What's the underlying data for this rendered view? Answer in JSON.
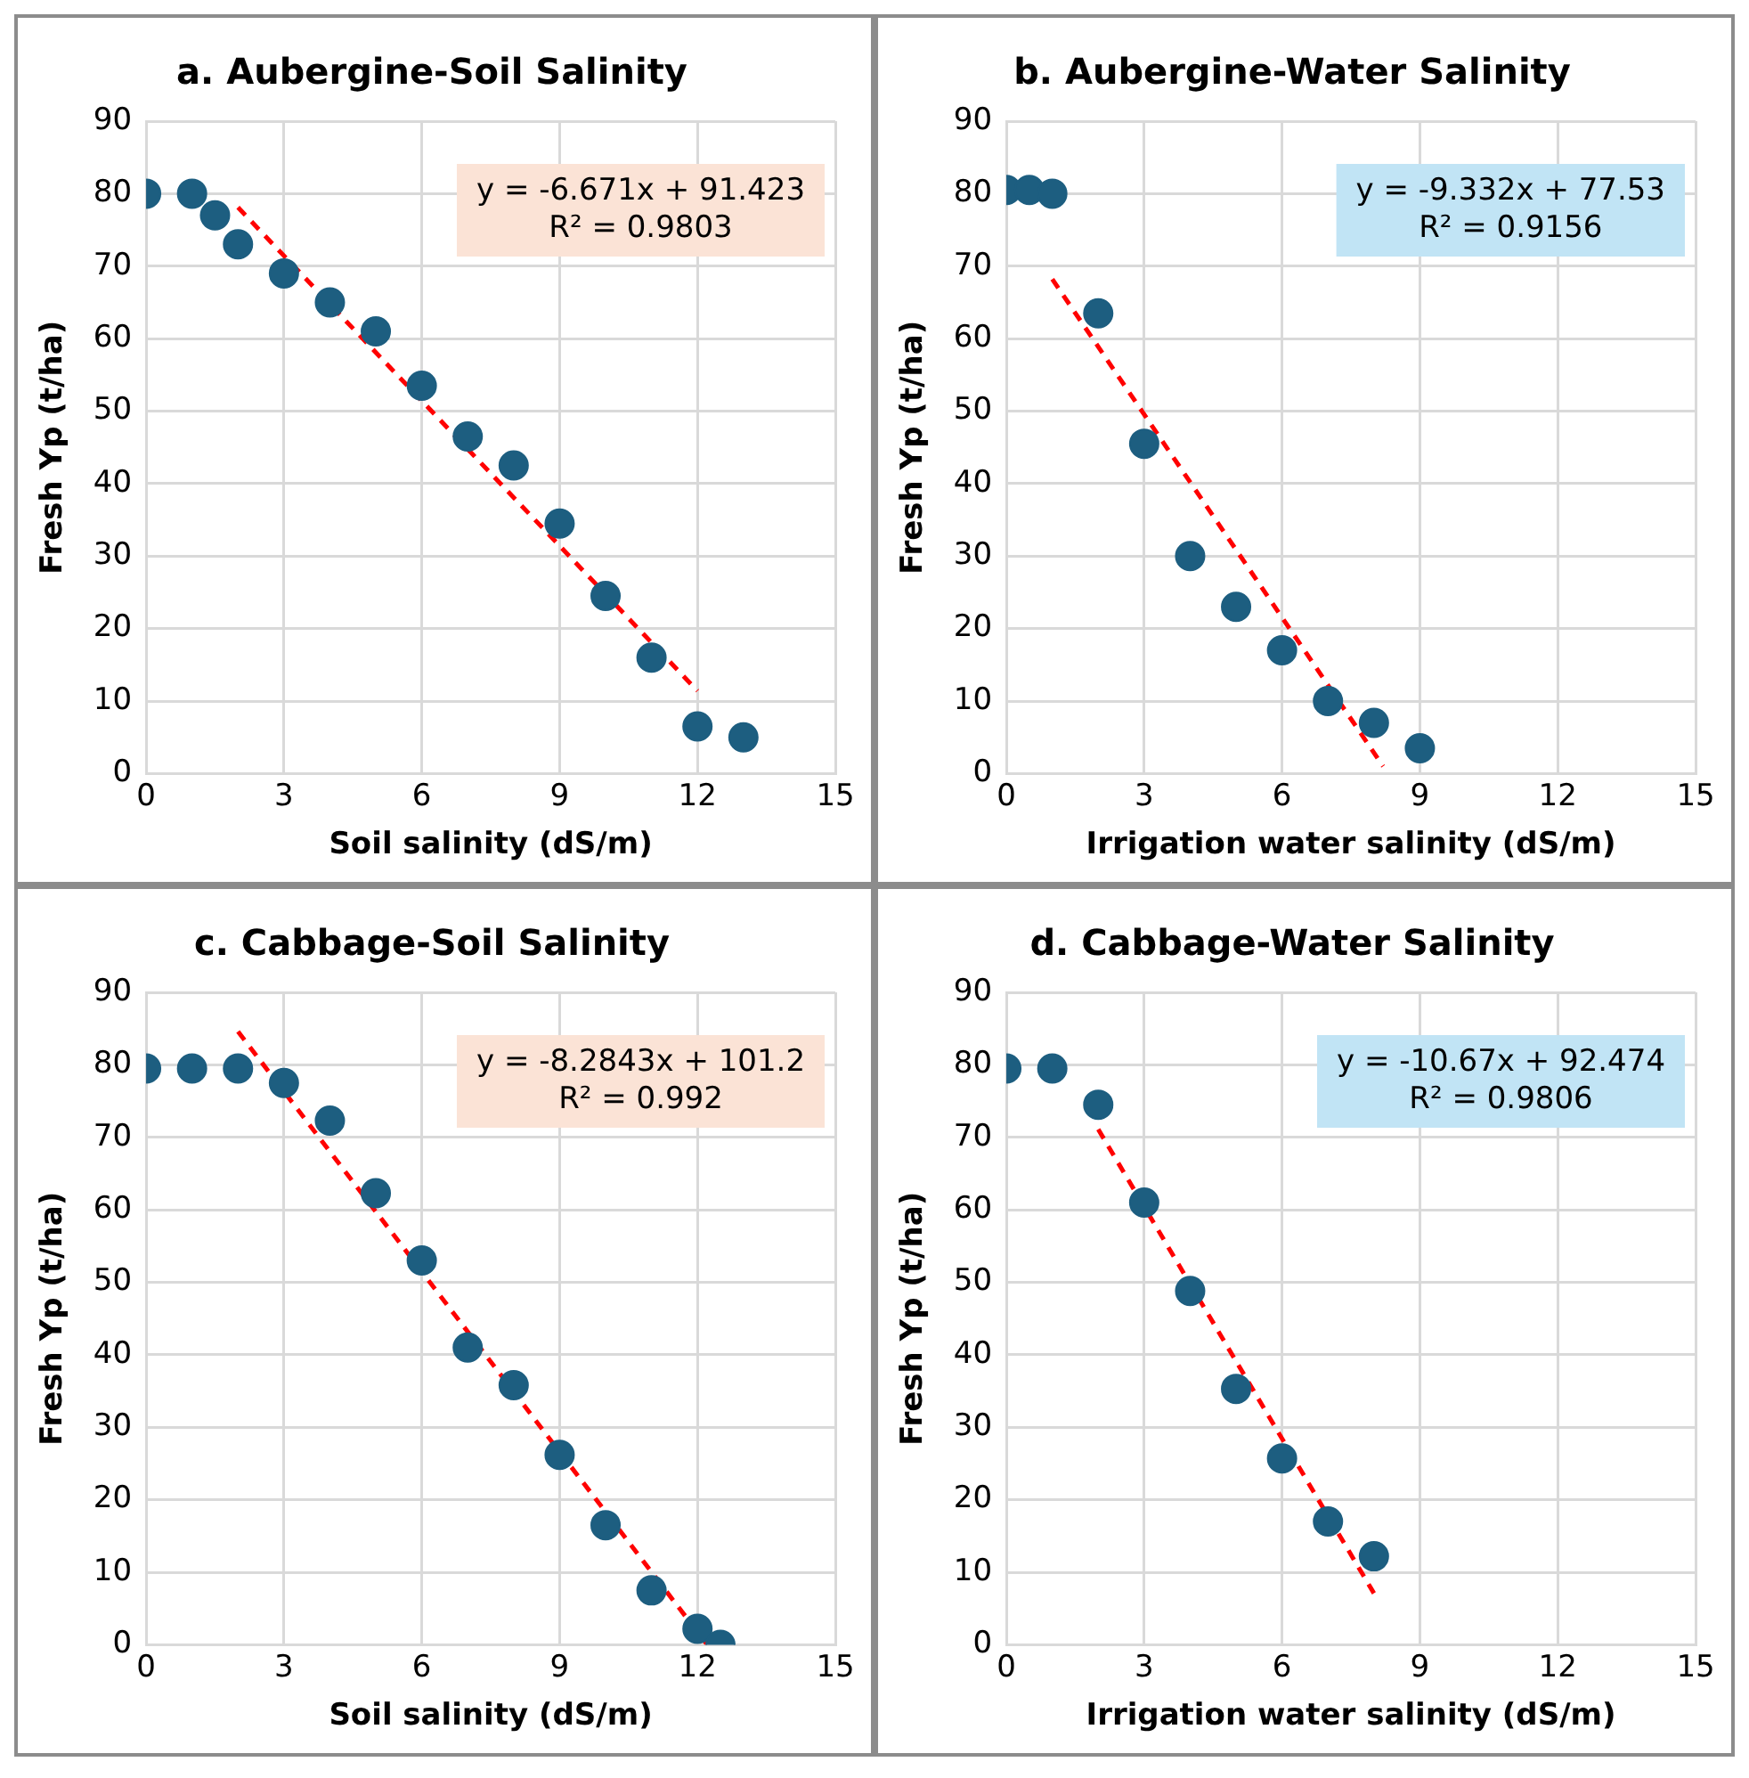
{
  "chart_data": [
    {
      "type": "scatter",
      "title": "a. Aubergine-Soil Salinity",
      "xlabel": "Soil salinity (dS/m)",
      "ylabel": "Fresh Yp (t/ha)",
      "xlim": [
        0,
        15
      ],
      "ylim": [
        0,
        90
      ],
      "xticks": [
        0,
        3,
        6,
        9,
        12,
        15
      ],
      "yticks": [
        0,
        10,
        20,
        30,
        40,
        50,
        60,
        70,
        80,
        90
      ],
      "grid": true,
      "series": [
        {
          "type": "scatter",
          "marker": "circle",
          "color": "#1d5e80",
          "x": [
            0,
            1,
            1.5,
            2,
            3,
            4,
            5,
            6,
            7,
            8,
            9,
            10,
            11,
            12,
            13
          ],
          "values": [
            80,
            80,
            77,
            73,
            69,
            65,
            61,
            53.5,
            46.5,
            42.5,
            34.5,
            24.5,
            16,
            6.5,
            5
          ]
        },
        {
          "type": "line",
          "marker": "none",
          "line_style": "dashed",
          "color": "#ff0000",
          "x": [
            2,
            12
          ],
          "values": [
            78.1,
            11.4
          ]
        }
      ],
      "annotations": [
        "y = -6.671x + 91.423\nR² = 0.9803"
      ]
    },
    {
      "type": "scatter",
      "title": "b. Aubergine-Water Salinity",
      "xlabel": "Irrigation water salinity (dS/m)",
      "ylabel": "Fresh Yp (t/ha)",
      "xlim": [
        0,
        15
      ],
      "ylim": [
        0,
        90
      ],
      "xticks": [
        0,
        3,
        6,
        9,
        12,
        15
      ],
      "yticks": [
        0,
        10,
        20,
        30,
        40,
        50,
        60,
        70,
        80,
        90
      ],
      "grid": true,
      "series": [
        {
          "type": "scatter",
          "marker": "circle",
          "color": "#1d5e80",
          "x": [
            0,
            0.5,
            1,
            2,
            3,
            4,
            5,
            6,
            7,
            8,
            9
          ],
          "values": [
            80.5,
            80.5,
            80,
            63.5,
            45.5,
            30,
            23,
            17,
            10,
            7,
            3.5
          ]
        },
        {
          "type": "line",
          "marker": "none",
          "line_style": "dashed",
          "color": "#ff0000",
          "x": [
            1,
            8.2
          ],
          "values": [
            68.2,
            1.0
          ]
        }
      ],
      "annotations": [
        "y = -9.332x + 77.53\nR² = 0.9156"
      ]
    },
    {
      "type": "scatter",
      "title": "c. Cabbage-Soil Salinity",
      "xlabel": "Soil salinity (dS/m)",
      "ylabel": "Fresh Yp (t/ha)",
      "xlim": [
        0,
        15
      ],
      "ylim": [
        0,
        90
      ],
      "xticks": [
        0,
        3,
        6,
        9,
        12,
        15
      ],
      "yticks": [
        0,
        10,
        20,
        30,
        40,
        50,
        60,
        70,
        80,
        90
      ],
      "grid": true,
      "series": [
        {
          "type": "scatter",
          "marker": "circle",
          "color": "#1d5e80",
          "x": [
            0,
            1,
            2,
            3,
            4,
            5,
            6,
            7,
            8,
            9,
            10,
            11,
            12,
            12.5
          ],
          "values": [
            79.5,
            79.5,
            79.5,
            77.5,
            72.3,
            62.3,
            53,
            41,
            35.8,
            26.2,
            16.5,
            7.5,
            2.2,
            0
          ]
        },
        {
          "type": "line",
          "marker": "none",
          "line_style": "dashed",
          "color": "#ff0000",
          "x": [
            2,
            12.2
          ],
          "values": [
            84.6,
            0.1
          ]
        }
      ],
      "annotations": [
        "y = -8.2843x + 101.2\nR² = 0.992"
      ]
    },
    {
      "type": "scatter",
      "title": "d. Cabbage-Water Salinity",
      "xlabel": "Irrigation water salinity (dS/m)",
      "ylabel": "Fresh Yp (t/ha)",
      "xlim": [
        0,
        15
      ],
      "ylim": [
        0,
        90
      ],
      "xticks": [
        0,
        3,
        6,
        9,
        12,
        15
      ],
      "yticks": [
        0,
        10,
        20,
        30,
        40,
        50,
        60,
        70,
        80,
        90
      ],
      "grid": true,
      "series": [
        {
          "type": "scatter",
          "marker": "circle",
          "color": "#1d5e80",
          "x": [
            0,
            1,
            2,
            3,
            4,
            5,
            6,
            7,
            8
          ],
          "values": [
            79.5,
            79.5,
            74.5,
            61,
            48.8,
            35.3,
            25.7,
            17,
            12.2
          ]
        },
        {
          "type": "line",
          "marker": "none",
          "line_style": "dashed",
          "color": "#ff0000",
          "x": [
            2,
            8
          ],
          "values": [
            71.1,
            7.1
          ]
        }
      ],
      "annotations": [
        "y = -10.67x + 92.474\nR² = 0.9806"
      ]
    }
  ]
}
